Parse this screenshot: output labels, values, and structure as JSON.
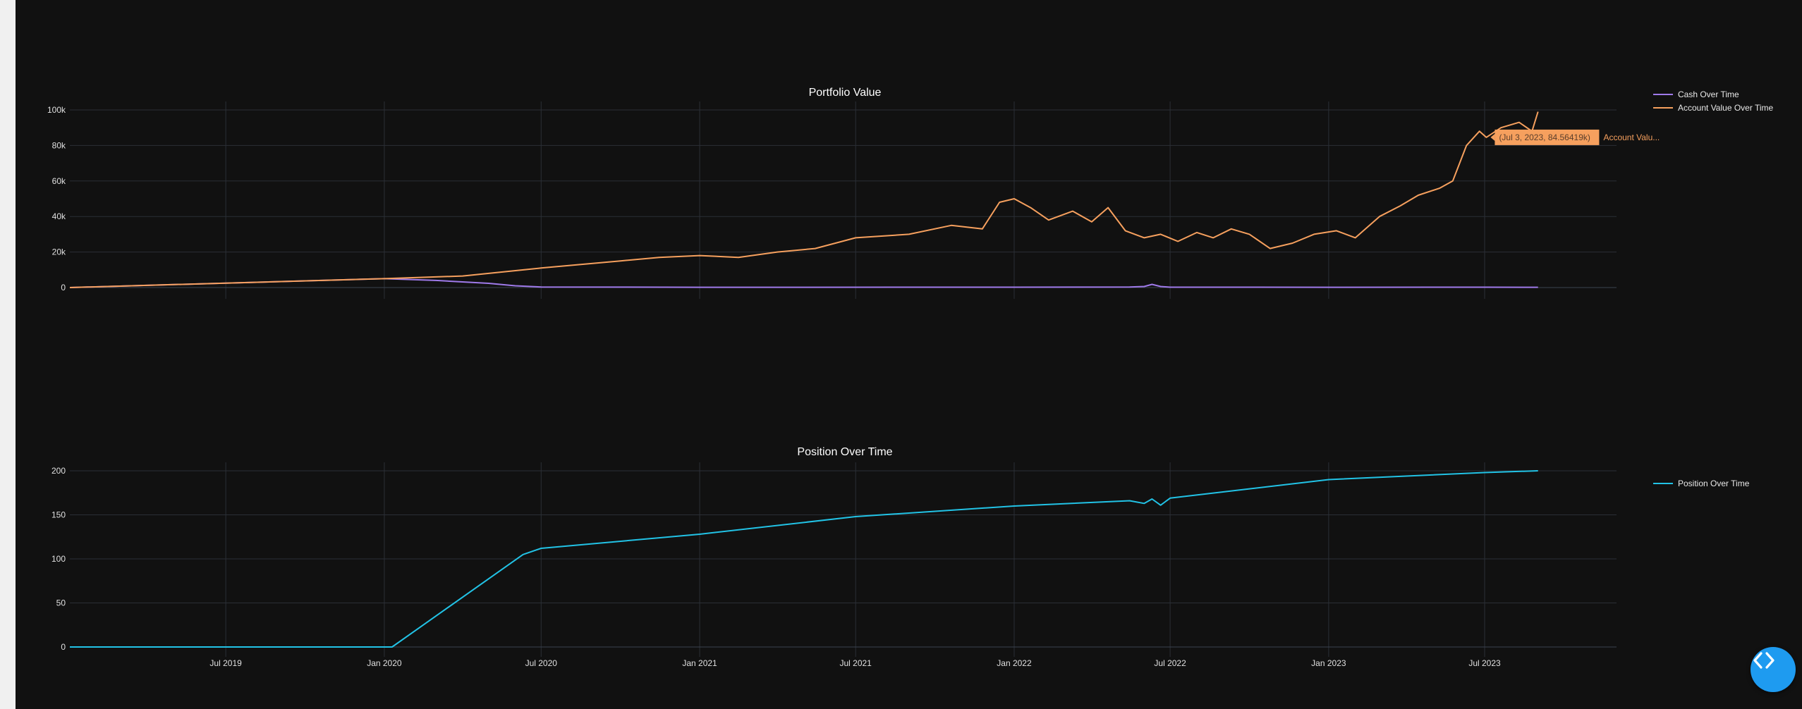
{
  "colors": {
    "background": "#111111",
    "grid": "#2b2f36",
    "tick_text": "#e0e0e0",
    "cash": "#9f7aea",
    "account": "#f6a05e",
    "position": "#22c3e6",
    "fab": "#1e9bf0"
  },
  "x_ticks": [
    "Jul 2019",
    "Jan 2020",
    "Jul 2020",
    "Jan 2021",
    "Jul 2021",
    "Jan 2022",
    "Jul 2022",
    "Jan 2023",
    "Jul 2023"
  ],
  "fab": {
    "icon": "code-brackets-icon"
  },
  "chart_data": [
    {
      "type": "line",
      "title": "Portfolio Value",
      "xlabel": "",
      "ylabel": "",
      "x_range": [
        "2019-01-01",
        "2024-01-01"
      ],
      "ylim": [
        0,
        100000
      ],
      "y_ticks": [
        0,
        20000,
        40000,
        60000,
        80000,
        100000
      ],
      "y_tick_labels": [
        "0",
        "20k",
        "40k",
        "60k",
        "80k",
        "100k"
      ],
      "legend_position": "top-right",
      "grid": true,
      "hover": {
        "text": "(Jul 3, 2023, 84.56419k)",
        "series_label": "Account Valu...",
        "x": "2023-07-03",
        "y": 84564.19
      },
      "series": [
        {
          "name": "Cash Over Time",
          "color": "#9f7aea",
          "x": [
            "2019-01-01",
            "2019-07-01",
            "2020-01-01",
            "2020-03-01",
            "2020-05-01",
            "2020-06-01",
            "2020-07-01",
            "2021-01-01",
            "2022-01-01",
            "2022-05-15",
            "2022-06-01",
            "2022-06-10",
            "2022-06-20",
            "2022-07-01",
            "2023-01-01",
            "2023-07-01",
            "2023-09-01"
          ],
          "y": [
            0,
            2500,
            5000,
            4000,
            2400,
            1000,
            300,
            150,
            200,
            300,
            600,
            1800,
            600,
            200,
            150,
            200,
            150
          ]
        },
        {
          "name": "Account Value Over Time",
          "color": "#f6a05e",
          "x": [
            "2019-01-01",
            "2019-07-01",
            "2020-01-01",
            "2020-04-01",
            "2020-07-01",
            "2020-10-01",
            "2020-11-15",
            "2021-01-01",
            "2021-02-15",
            "2021-04-01",
            "2021-05-15",
            "2021-07-01",
            "2021-09-01",
            "2021-10-20",
            "2021-11-25",
            "2021-12-15",
            "2022-01-01",
            "2022-01-20",
            "2022-02-10",
            "2022-03-10",
            "2022-04-01",
            "2022-04-20",
            "2022-05-10",
            "2022-06-01",
            "2022-06-20",
            "2022-07-10",
            "2022-08-01",
            "2022-08-20",
            "2022-09-10",
            "2022-10-01",
            "2022-10-25",
            "2022-11-20",
            "2022-12-15",
            "2023-01-10",
            "2023-02-01",
            "2023-03-01",
            "2023-03-25",
            "2023-04-15",
            "2023-05-10",
            "2023-05-25",
            "2023-06-10",
            "2023-06-25",
            "2023-07-03",
            "2023-07-20",
            "2023-08-10",
            "2023-08-25",
            "2023-09-01"
          ],
          "y": [
            0,
            2500,
            5000,
            6500,
            11000,
            15000,
            17000,
            18000,
            17000,
            20000,
            22000,
            28000,
            30000,
            35000,
            33000,
            48000,
            50000,
            45000,
            38000,
            43000,
            37000,
            45000,
            32000,
            28000,
            30000,
            26000,
            31000,
            28000,
            33000,
            30000,
            22000,
            25000,
            30000,
            32000,
            28000,
            40000,
            46000,
            52000,
            56000,
            60000,
            80000,
            88000,
            84564,
            90000,
            93000,
            88000,
            99000
          ]
        }
      ]
    },
    {
      "type": "line",
      "title": "Position Over Time",
      "xlabel": "",
      "ylabel": "",
      "x_range": [
        "2019-01-01",
        "2024-01-01"
      ],
      "ylim": [
        0,
        200
      ],
      "y_ticks": [
        0,
        50,
        100,
        150,
        200
      ],
      "y_tick_labels": [
        "0",
        "50",
        "100",
        "150",
        "200"
      ],
      "legend_position": "top-right",
      "grid": true,
      "series": [
        {
          "name": "Position Over Time",
          "color": "#22c3e6",
          "x": [
            "2019-01-01",
            "2020-01-01",
            "2020-01-10",
            "2020-06-10",
            "2020-07-01",
            "2021-01-01",
            "2021-07-01",
            "2022-01-01",
            "2022-05-15",
            "2022-06-01",
            "2022-06-10",
            "2022-06-20",
            "2022-07-01",
            "2023-01-01",
            "2023-07-01",
            "2023-09-01"
          ],
          "y": [
            0,
            0,
            0,
            105,
            112,
            128,
            148,
            160,
            166,
            163,
            168,
            161,
            169,
            190,
            198,
            200
          ]
        }
      ]
    }
  ]
}
